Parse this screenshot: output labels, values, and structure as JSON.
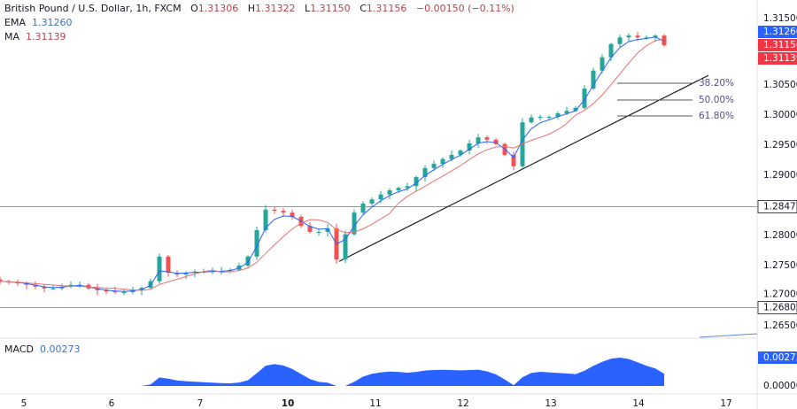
{
  "header": {
    "symbol": "British Pound / U.S. Dollar, 1h, FXCM",
    "o_label": "O",
    "o": "1.31306",
    "h_label": "H",
    "h": "1.31322",
    "l_label": "L",
    "l": "1.31150",
    "c_label": "C",
    "c": "1.31156",
    "change": "−0.00150 (−0.11%)"
  },
  "indicators": {
    "ema_label": "EMA",
    "ema_value": "1.31260",
    "ma_label": "MA",
    "ma_value": "1.31139",
    "macd_label": "MACD",
    "macd_value": "0.00273"
  },
  "colors": {
    "up": "#26a69a",
    "down": "#ef5350",
    "ema": "#2962ff",
    "ma": "#e57373",
    "macd": "#2962ff",
    "hline": "#4fb8b0"
  },
  "chart_data": {
    "type": "candlestick",
    "x_ticks": [
      "5",
      "6",
      "7",
      "10",
      "11",
      "12",
      "13",
      "14",
      "17"
    ],
    "y_ticks": [
      "1.31500",
      "1.30500",
      "1.30000",
      "1.29500",
      "1.29000",
      "1.28000",
      "1.27500",
      "1.27000",
      "1.26500"
    ],
    "ylim": [
      1.2625,
      1.319
    ],
    "closes": [
      1.2724,
      1.2722,
      1.2721,
      1.2718,
      1.2715,
      1.2712,
      1.2712,
      1.2715,
      1.2718,
      1.2718,
      1.2712,
      1.2709,
      1.2707,
      1.2706,
      1.2706,
      1.2709,
      1.2713,
      1.2724,
      1.2765,
      1.2738,
      1.2735,
      1.2738,
      1.274,
      1.274,
      1.2741,
      1.2741,
      1.2743,
      1.275,
      1.2765,
      1.2809,
      1.2843,
      1.2841,
      1.2838,
      1.2831,
      1.2816,
      1.2806,
      1.2806,
      1.2812,
      1.276,
      1.2802,
      1.2838,
      1.2853,
      1.286,
      1.2868,
      1.2875,
      1.2879,
      1.2882,
      1.2897,
      1.2912,
      1.2919,
      1.2927,
      1.2934,
      1.2941,
      1.2953,
      1.2963,
      1.2959,
      1.2952,
      1.2934,
      1.2915,
      1.2988,
      1.2996,
      1.2997,
      1.2997,
      1.3003,
      1.3007,
      1.3012,
      1.3044,
      1.3074,
      1.3096,
      1.3118,
      1.3129,
      1.3132,
      1.3129,
      1.3129,
      1.3132,
      1.3116
    ],
    "horizontal_levels": [
      {
        "value": 1.28478,
        "label": "1.28478"
      },
      {
        "value": 1.26802,
        "label": "1.26802"
      }
    ],
    "trendline": {
      "start": 1.2757,
      "end": 1.3066
    },
    "fib_levels": [
      {
        "label": "38.20%",
        "value": 1.30529
      },
      {
        "label": "50.00%",
        "value": 1.3025
      },
      {
        "label": "61.80%",
        "value": 1.29985
      }
    ],
    "price_badges": [
      {
        "label": "1.31260",
        "color": "#2962ff"
      },
      {
        "label": "1.31156",
        "color": "#f23645"
      },
      {
        "label": "1.31139",
        "color": "#f23645"
      }
    ],
    "macd_ticks": [
      "0.00000"
    ]
  }
}
